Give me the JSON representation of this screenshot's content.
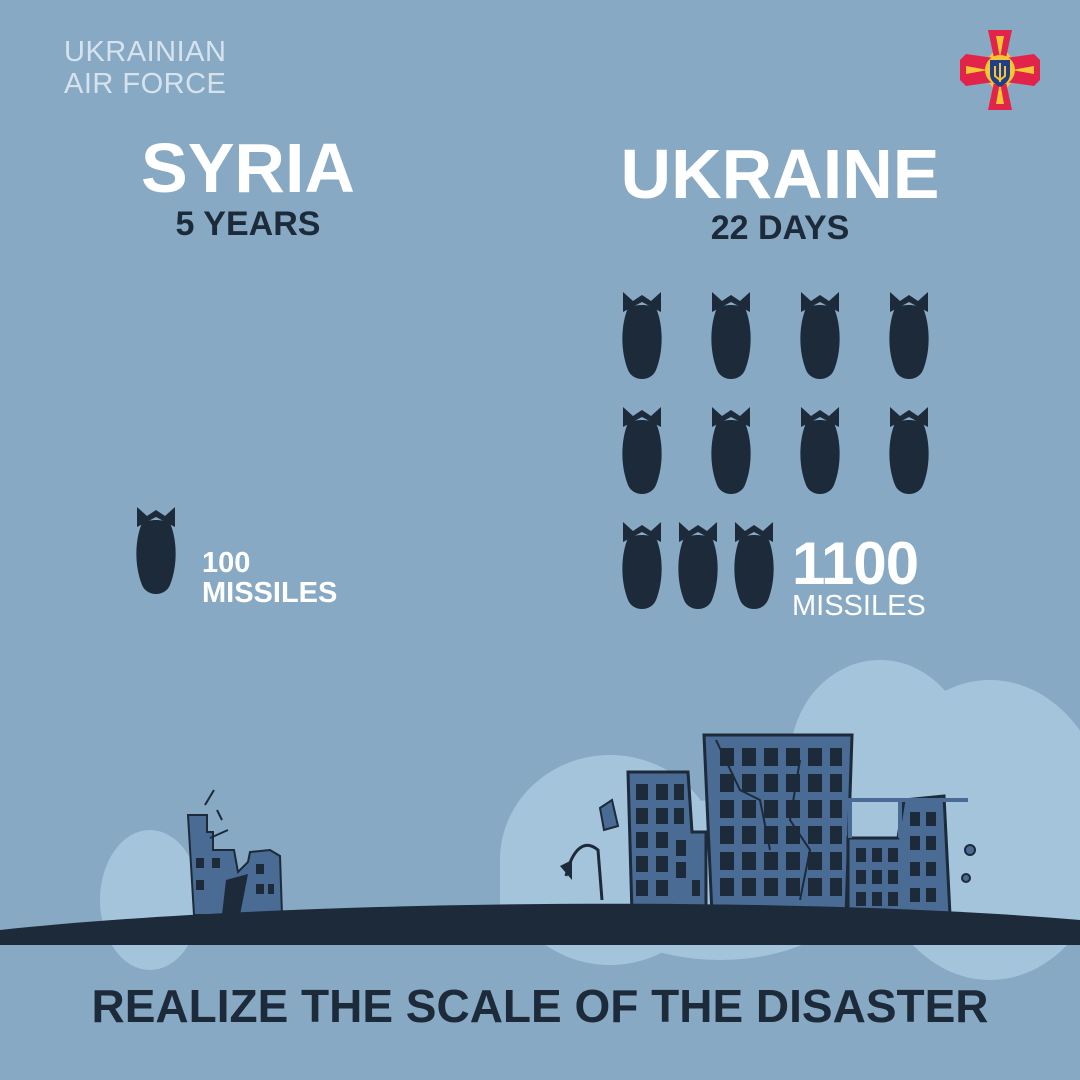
{
  "org": {
    "line1": "UKRAINIAN",
    "line2": "AIR FORCE"
  },
  "emblem": {
    "icon": "air-force-emblem-icon",
    "colors": {
      "cross": "#e2244a",
      "rays": "#f6c533",
      "shield": "#1f3f8a"
    }
  },
  "syria": {
    "title": "SYRIA",
    "period": "5 YEARS",
    "count_value": "100",
    "count_unit": "MISSILES",
    "missile_icons_shown": 1
  },
  "ukraine": {
    "title": "UKRAINE",
    "period": "22 DAYS",
    "count_value": "1100",
    "count_unit": "MISSILES",
    "missile_icons_shown": 11
  },
  "illustration": {
    "icon": "destroyed-city-icon"
  },
  "tagline": "REALIZE THE SCALE OF THE DISASTER",
  "colors": {
    "background": "#87a9c4",
    "dark": "#1c2a3a",
    "ground": "#1c2a3a",
    "building": "#496b94",
    "cloud": "#a4c4dc"
  }
}
